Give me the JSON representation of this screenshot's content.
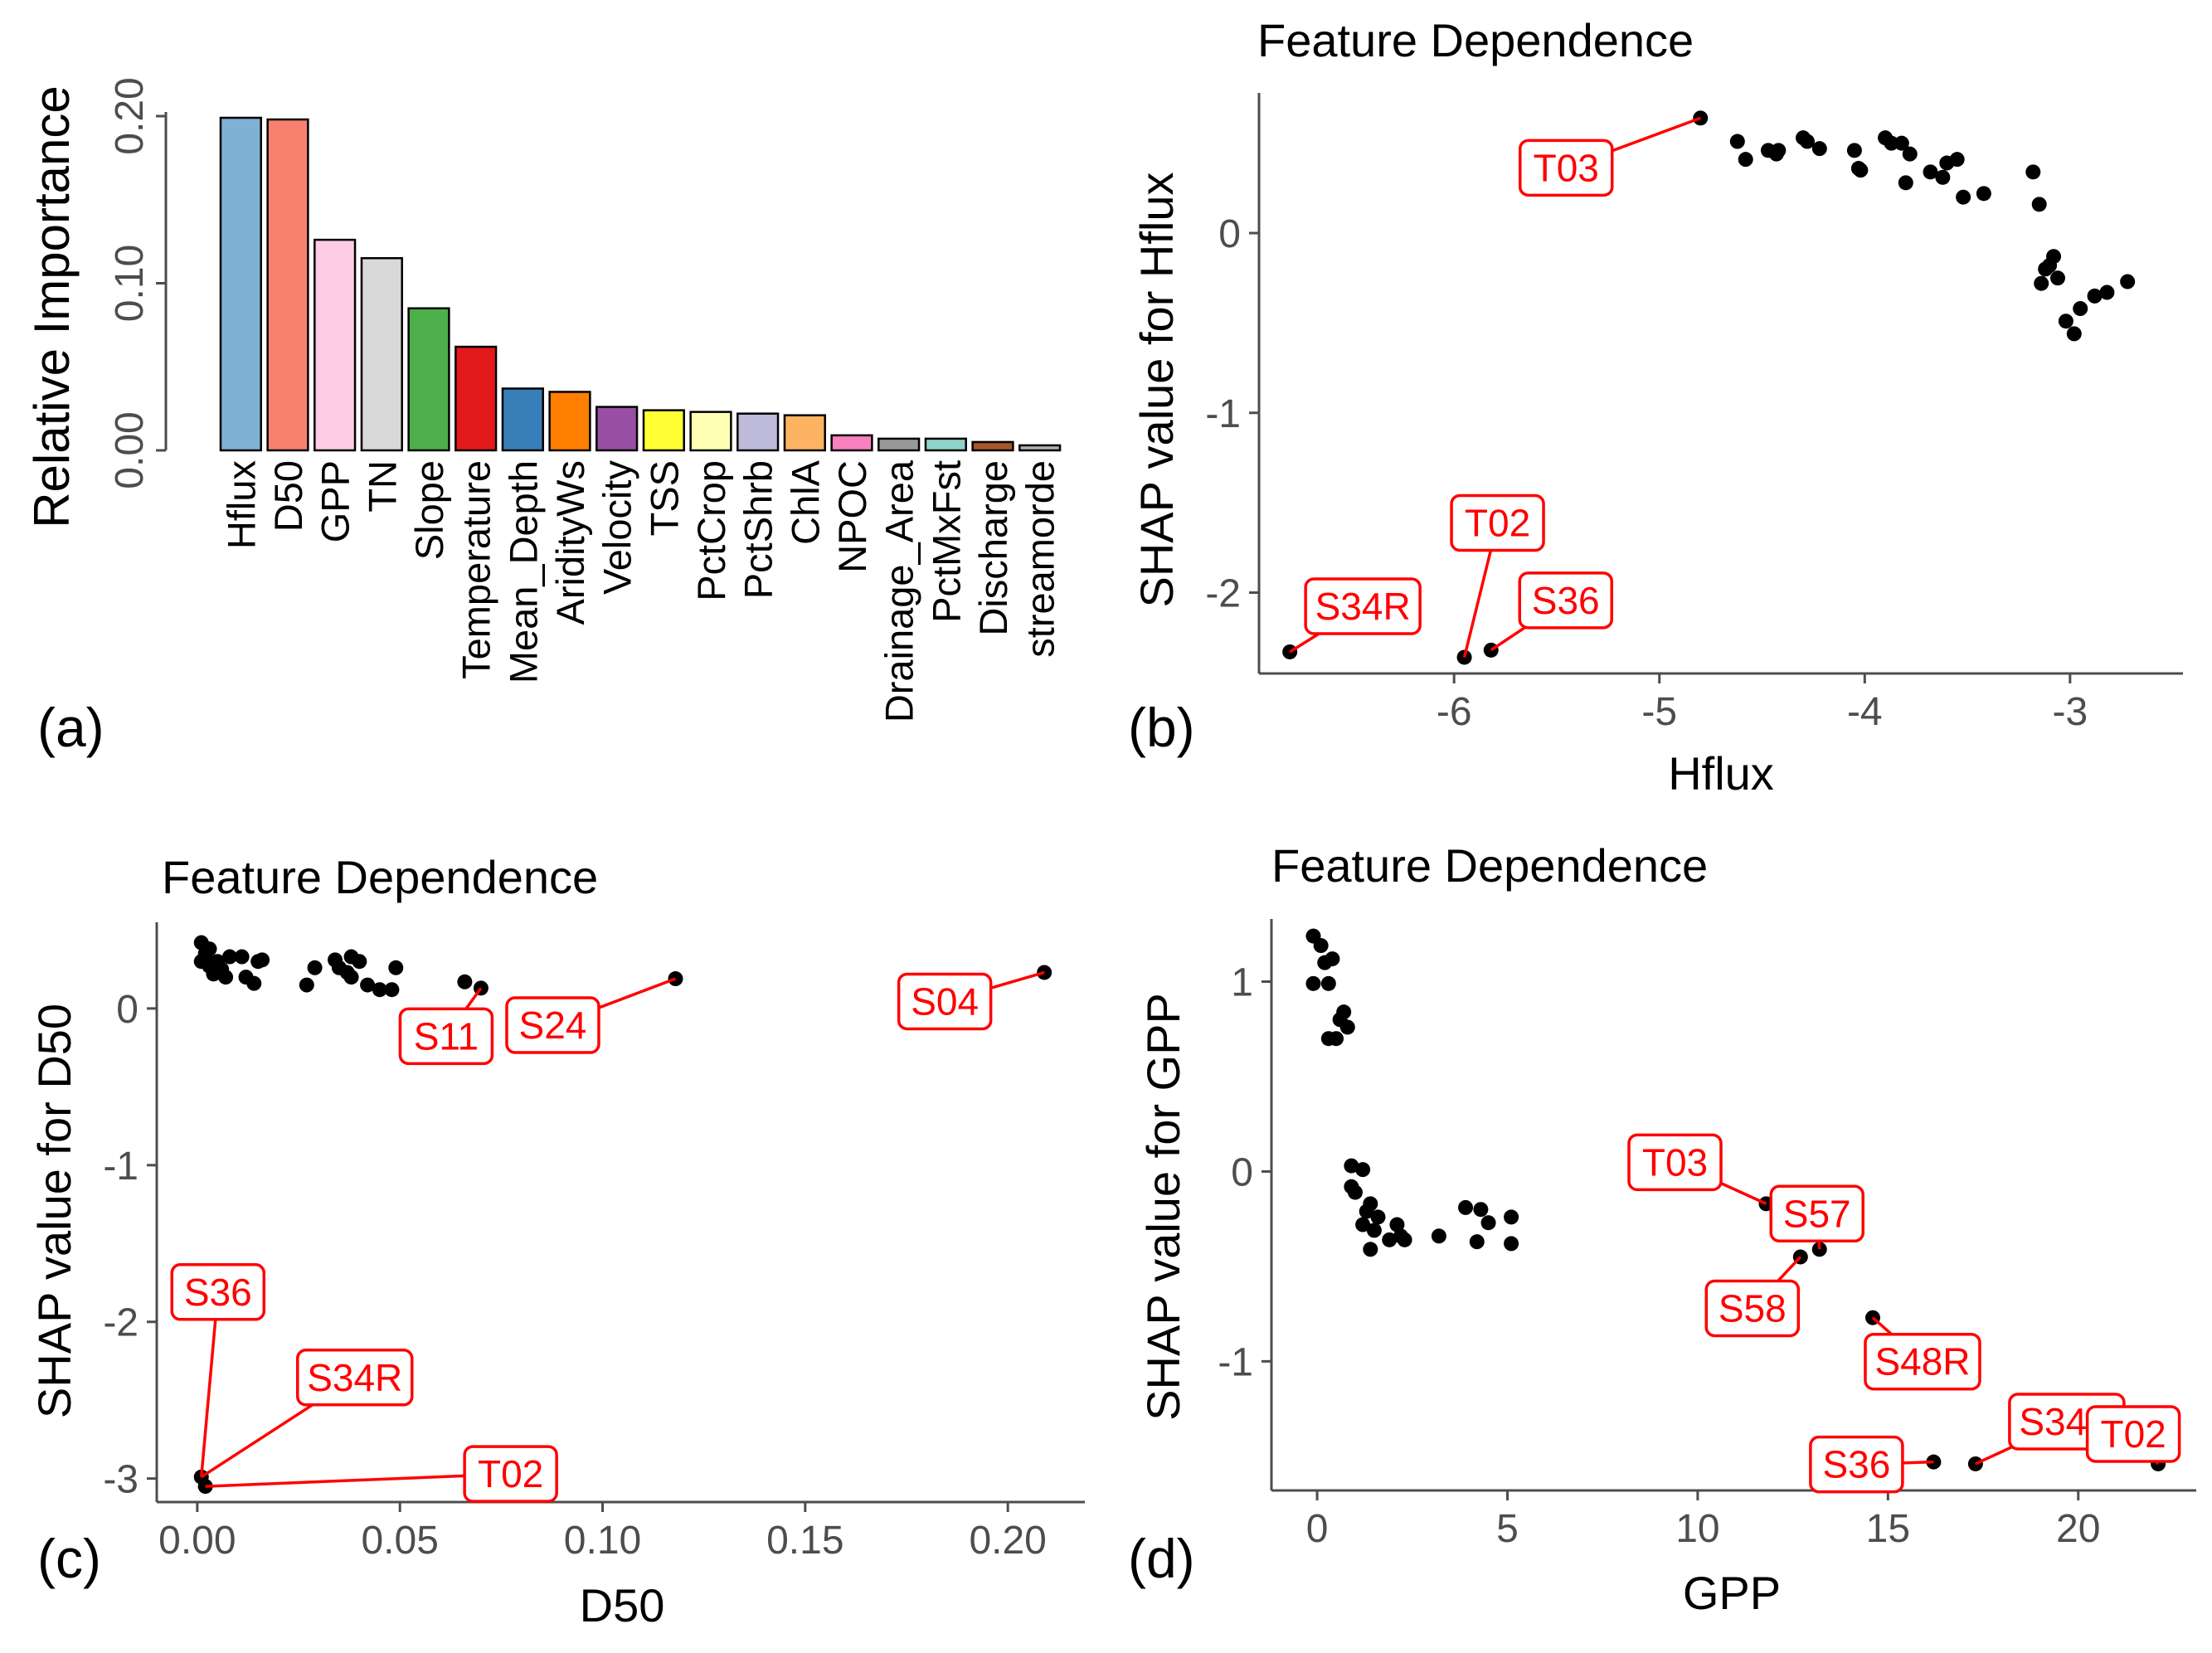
{
  "panel_labels": [
    "(a)",
    "(b)",
    "(c)",
    "(d)"
  ],
  "chart_data": [
    {
      "panel": "(a)",
      "type": "bar",
      "title": "",
      "xlabel": "",
      "ylabel": "Relative Importance",
      "ylim": [
        0,
        0.2
      ],
      "yticks": [
        0,
        0.1,
        0.2
      ],
      "ytick_labels": [
        "0.00",
        "0.10",
        "0.20"
      ],
      "categories": [
        "Hflux",
        "D50",
        "GPP",
        "TN",
        "Slope",
        "Temperature",
        "Mean_Depth",
        "AridityWs",
        "Velocity",
        "TSS",
        "PctCrop",
        "PctShrb",
        "ChlA",
        "NPOC",
        "Drainage_Area",
        "PctMxFst",
        "Discharge",
        "streamorde"
      ],
      "values": [
        0.199,
        0.198,
        0.126,
        0.115,
        0.085,
        0.062,
        0.037,
        0.035,
        0.026,
        0.024,
        0.023,
        0.022,
        0.021,
        0.009,
        0.007,
        0.007,
        0.005,
        0.003
      ],
      "colors": [
        "#7fb1d4",
        "#f8806f",
        "#fccde5",
        "#d9d9d9",
        "#4daf4a",
        "#e31a1c",
        "#377eb8",
        "#ff7f00",
        "#984ea3",
        "#ffff33",
        "#ffffb3",
        "#bebada",
        "#fdb462",
        "#f781bf",
        "#999999",
        "#8dd3c7",
        "#a65628",
        "#b3b3b3"
      ],
      "grid": false,
      "legend": "none"
    },
    {
      "panel": "(b)",
      "type": "scatter",
      "title": "Feature Dependence",
      "xlabel": "Hflux",
      "ylabel": "SHAP value for Hflux",
      "xlim": [
        -6.95,
        -2.45
      ],
      "ylim": [
        -2.45,
        0.78
      ],
      "xticks": [
        -6,
        -5,
        -4,
        -3
      ],
      "yticks": [
        -2,
        -1,
        0
      ],
      "x": [
        -6.8,
        -5.95,
        -5.82,
        -4.8,
        -4.62,
        -4.58,
        -4.47,
        -4.43,
        -4.42,
        -4.3,
        -4.28,
        -4.22,
        -4.05,
        -4.03,
        -4.02,
        -3.9,
        -3.87,
        -3.82,
        -3.8,
        -3.78,
        -3.68,
        -3.62,
        -3.6,
        -3.55,
        -3.52,
        -3.42,
        -3.18,
        -3.15,
        -3.14,
        -3.12,
        -3.1,
        -3.08,
        -3.06,
        -3.02,
        -2.98,
        -2.95,
        -2.88,
        -2.82,
        -2.72
      ],
      "y": [
        -2.33,
        -2.36,
        -2.32,
        0.64,
        0.51,
        0.41,
        0.46,
        0.44,
        0.46,
        0.53,
        0.51,
        0.47,
        0.46,
        0.36,
        0.35,
        0.53,
        0.5,
        0.5,
        0.28,
        0.44,
        0.34,
        0.31,
        0.39,
        0.41,
        0.2,
        0.22,
        0.34,
        0.16,
        -0.28,
        -0.2,
        -0.18,
        -0.13,
        -0.25,
        -0.49,
        -0.56,
        -0.42,
        -0.35,
        -0.33,
        -0.27
      ],
      "annotations": [
        {
          "label": "T03",
          "x": -4.8,
          "y": 0.64
        },
        {
          "label": "S34R",
          "x": -6.8,
          "y": -2.33
        },
        {
          "label": "T02",
          "x": -5.95,
          "y": -2.36
        },
        {
          "label": "S36",
          "x": -5.82,
          "y": -2.32
        }
      ],
      "grid": false,
      "legend": "none"
    },
    {
      "panel": "(c)",
      "type": "scatter",
      "title": "Feature Dependence",
      "xlabel": "D50",
      "ylabel": "SHAP value for D50",
      "xlim": [
        -0.01,
        0.219
      ],
      "ylim": [
        -3.15,
        0.55
      ],
      "xticks": [
        0,
        0.05,
        0.1,
        0.15,
        0.2
      ],
      "xtick_labels": [
        "0.00",
        "0.05",
        "0.10",
        "0.15",
        "0.20"
      ],
      "yticks": [
        -3,
        -2,
        -1,
        0
      ],
      "x": [
        0.001,
        0.002,
        0.003,
        0.004,
        0.005,
        0.006,
        0.007,
        0.008,
        0.001,
        0.003,
        0.011,
        0.012,
        0.014,
        0.015,
        0.016,
        0.027,
        0.029,
        0.034,
        0.035,
        0.037,
        0.038,
        0.038,
        0.04,
        0.042,
        0.045,
        0.048,
        0.049,
        0.066,
        0.07,
        0.118,
        0.209,
        0.001,
        0.002
      ],
      "y": [
        0.42,
        0.35,
        0.38,
        0.22,
        0.3,
        0.25,
        0.2,
        0.33,
        0.3,
        0.27,
        0.33,
        0.2,
        0.16,
        0.3,
        0.31,
        0.15,
        0.26,
        0.31,
        0.26,
        0.23,
        0.33,
        0.2,
        0.3,
        0.15,
        0.12,
        0.12,
        0.26,
        0.17,
        0.13,
        0.19,
        0.23,
        -2.99,
        -3.05
      ],
      "annotations": [
        {
          "label": "S11",
          "x": 0.07,
          "y": 0.13
        },
        {
          "label": "S24",
          "x": 0.118,
          "y": 0.19
        },
        {
          "label": "S04",
          "x": 0.209,
          "y": 0.23
        },
        {
          "label": "S36",
          "x": 0.001,
          "y": -2.99
        },
        {
          "label": "S34R",
          "x": 0.001,
          "y": -2.99
        },
        {
          "label": "T02",
          "x": 0.002,
          "y": -3.05
        }
      ],
      "grid": false,
      "legend": "none"
    },
    {
      "panel": "(d)",
      "type": "scatter",
      "title": "Feature Dependence",
      "xlabel": "GPP",
      "ylabel": "SHAP value for GPP",
      "xlim": [
        -1.2,
        23.1
      ],
      "ylim": [
        -1.68,
        1.33
      ],
      "xticks": [
        0,
        5,
        10,
        15,
        20
      ],
      "yticks": [
        -1,
        0,
        1
      ],
      "x": [
        -0.1,
        -0.1,
        0.1,
        0.2,
        0.3,
        0.3,
        0.4,
        0.6,
        0.7,
        0.8,
        0.5,
        0.9,
        0.9,
        1.0,
        1.2,
        1.3,
        1.2,
        1.4,
        1.6,
        1.4,
        1.5,
        1.9,
        2.1,
        2.2,
        2.3,
        3.2,
        3.9,
        4.2,
        4.3,
        4.5,
        5.1,
        5.1,
        11.8,
        12.7,
        13.2,
        14.6,
        16.2,
        17.3,
        22.1
      ],
      "y": [
        1.24,
        0.99,
        1.19,
        1.1,
        0.99,
        0.7,
        1.12,
        0.8,
        0.84,
        0.76,
        0.7,
        -0.08,
        0.03,
        -0.11,
        0.01,
        -0.21,
        -0.28,
        -0.17,
        -0.24,
        -0.41,
        -0.31,
        -0.36,
        -0.28,
        -0.34,
        -0.36,
        -0.34,
        -0.19,
        -0.37,
        -0.2,
        -0.27,
        -0.24,
        -0.38,
        -0.17,
        -0.45,
        -0.41,
        -0.77,
        -1.53,
        -1.54,
        -1.54
      ],
      "annotations": [
        {
          "label": "T03",
          "x": 11.8,
          "y": -0.17
        },
        {
          "label": "S57",
          "x": 13.2,
          "y": -0.41
        },
        {
          "label": "S58",
          "x": 12.7,
          "y": -0.45
        },
        {
          "label": "S48R",
          "x": 14.6,
          "y": -0.77
        },
        {
          "label": "S34R",
          "x": 17.3,
          "y": -1.54
        },
        {
          "label": "S36",
          "x": 16.2,
          "y": -1.53
        },
        {
          "label": "T02",
          "x": 22.1,
          "y": -1.54
        }
      ],
      "grid": false,
      "legend": "none"
    }
  ]
}
